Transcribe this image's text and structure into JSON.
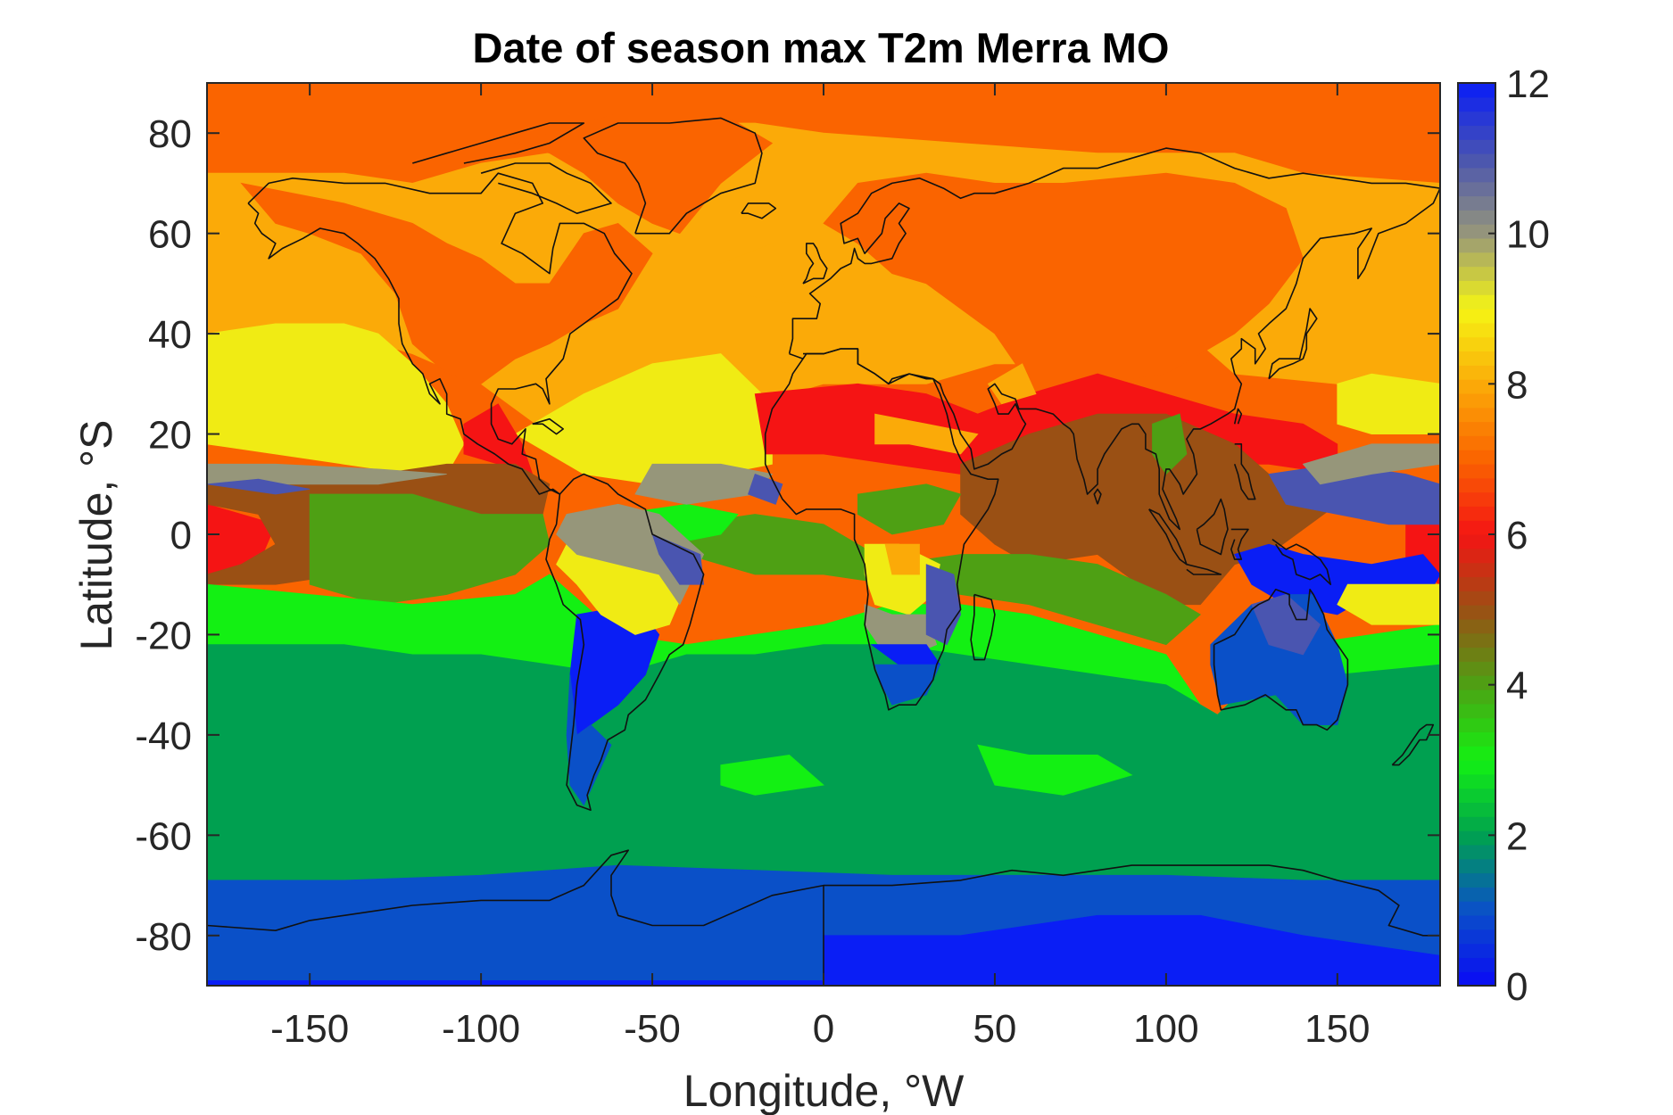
{
  "map": {
    "title": "Date of season max T2m Merra MO",
    "xlabel": "Longitude, °W",
    "ylabel": "Latitude, °S",
    "xticks": [
      {
        "value": -150,
        "label": "-150"
      },
      {
        "value": -100,
        "label": "-100"
      },
      {
        "value": -50,
        "label": "-50"
      },
      {
        "value": 0,
        "label": "0"
      },
      {
        "value": 50,
        "label": "50"
      },
      {
        "value": 100,
        "label": "100"
      },
      {
        "value": 150,
        "label": "150"
      }
    ],
    "yticks": [
      {
        "value": 80,
        "label": "80"
      },
      {
        "value": 60,
        "label": "60"
      },
      {
        "value": 40,
        "label": "40"
      },
      {
        "value": 20,
        "label": "20"
      },
      {
        "value": 0,
        "label": "0"
      },
      {
        "value": -20,
        "label": "-20"
      },
      {
        "value": -40,
        "label": "-40"
      },
      {
        "value": -60,
        "label": "-60"
      },
      {
        "value": -80,
        "label": "-80"
      }
    ],
    "xlim": [
      -180,
      180
    ],
    "ylim": [
      -90,
      90
    ],
    "colorbar": {
      "range": [
        0,
        12
      ],
      "ticks": [
        {
          "value": 0,
          "label": "0"
        },
        {
          "value": 2,
          "label": "2"
        },
        {
          "value": 4,
          "label": "4"
        },
        {
          "value": 6,
          "label": "6"
        },
        {
          "value": 8,
          "label": "8"
        },
        {
          "value": 10,
          "label": "10"
        },
        {
          "value": 12,
          "label": "12"
        }
      ],
      "colors": [
        "#0a0af5",
        "#0a50c8",
        "#00a050",
        "#13f013",
        "#4ea014",
        "#9a5014",
        "#f51414",
        "#fa6400",
        "#fbaa08",
        "#f5f514",
        "#96967a",
        "#4a55b0",
        "#0a1ef5"
      ]
    },
    "palette": {
      "m0": "#0a1ef5",
      "m1": "#0a50c8",
      "m2": "#00a050",
      "m3": "#13f013",
      "m4": "#4ea014",
      "m5": "#9a5014",
      "m6": "#f51414",
      "m7": "#fa6400",
      "m8": "#fbaa08",
      "m9": "#f0eb14",
      "m10": "#96967a",
      "m11": "#4a55b0"
    }
  }
}
